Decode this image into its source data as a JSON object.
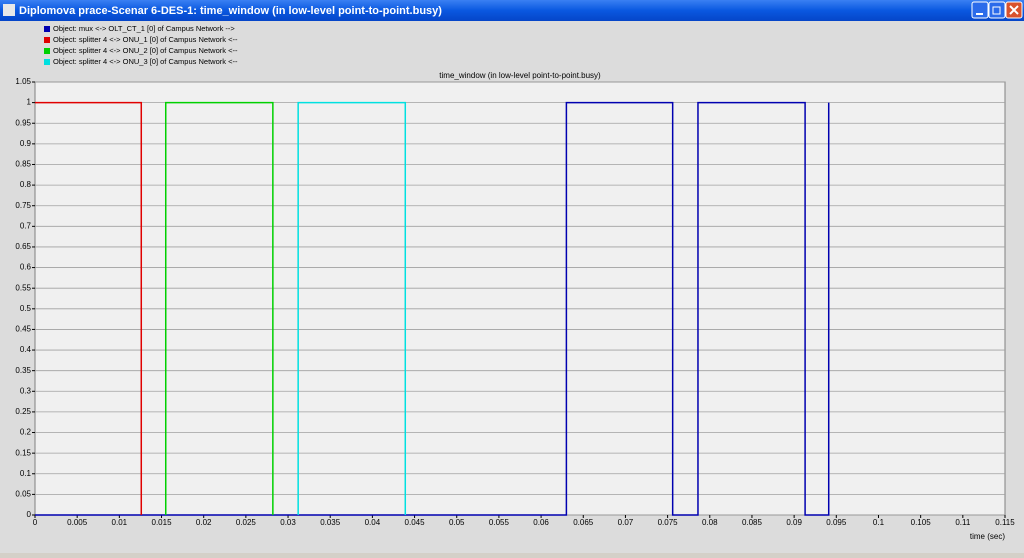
{
  "window": {
    "title": "Diplomova prace-Scenar 6-DES-1: time_window (in low-level point-to-point.busy)"
  },
  "chart_data": {
    "type": "line",
    "title": "time_window (in low-level point-to-point.busy)",
    "x_label": "time (sec)",
    "xlim": [
      0,
      0.115
    ],
    "xticks": [
      0,
      0.005,
      0.01,
      0.015,
      0.02,
      0.025,
      0.03,
      0.035,
      0.04,
      0.045,
      0.05,
      0.055,
      0.06,
      0.065,
      0.07,
      0.075,
      0.08,
      0.085,
      0.09,
      0.095,
      0.1,
      0.105,
      0.11,
      0.115
    ],
    "ylim": [
      0,
      1.05
    ],
    "yticks": [
      0,
      0.05,
      0.1,
      0.15,
      0.2,
      0.25,
      0.3,
      0.35,
      0.4,
      0.45,
      0.5,
      0.55,
      0.6,
      0.65,
      0.7,
      0.75,
      0.8,
      0.85,
      0.9,
      0.95,
      1,
      1.05
    ],
    "grid": true,
    "series": [
      {
        "name": "Object: mux <-> OLT_CT_1 [0] of Campus Network -->",
        "color": "#0000b0",
        "x": [
          0,
          0.063,
          0.063,
          0.0756,
          0.0756,
          0.0786,
          0.0786,
          0.0913,
          0.0913,
          0.0941,
          0.0941
        ],
        "values": [
          0,
          0,
          1,
          1,
          0,
          0,
          1,
          1,
          0,
          0,
          1
        ]
      },
      {
        "name": "Object: splitter 4 <-> ONU_1 [0] of Campus Network <--",
        "color": "#e00000",
        "x": [
          0,
          0.0126,
          0.0126
        ],
        "values": [
          1,
          1,
          0
        ]
      },
      {
        "name": "Object: splitter 4 <-> ONU_2 [0] of Campus Network <--",
        "color": "#00d000",
        "x": [
          0.0155,
          0.0155,
          0.0282,
          0.0282
        ],
        "values": [
          0,
          1,
          1,
          0
        ]
      },
      {
        "name": "Object: splitter 4 <-> ONU_3 [0] of Campus Network <--",
        "color": "#00e0e0",
        "x": [
          0.0312,
          0.0312,
          0.0439,
          0.0439
        ],
        "values": [
          0,
          1,
          1,
          0
        ]
      }
    ]
  }
}
